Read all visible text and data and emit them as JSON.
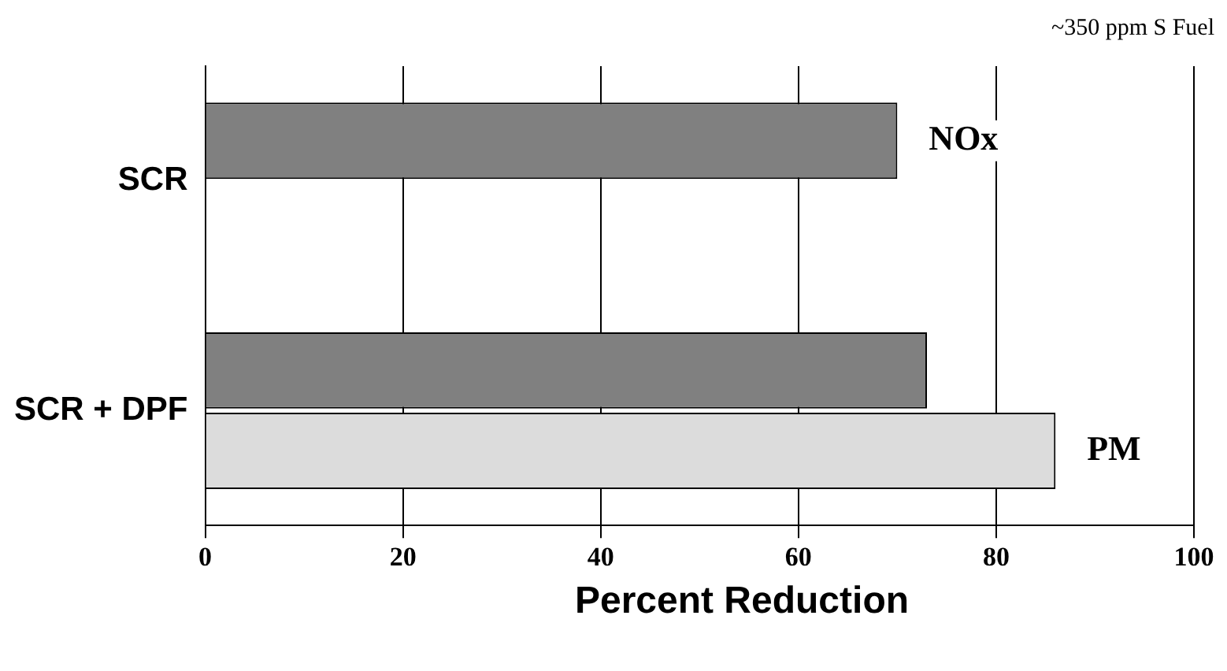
{
  "chart_data": {
    "type": "bar",
    "orientation": "horizontal",
    "categories": [
      "SCR",
      "SCR + DPF"
    ],
    "series": [
      {
        "name": "NOx",
        "color": "#808080",
        "values": [
          70,
          73
        ]
      },
      {
        "name": "PM",
        "color": "#dcdcdc",
        "values": [
          null,
          86
        ]
      }
    ],
    "xlabel": "Percent Reduction",
    "xlim": [
      0,
      100
    ],
    "xticks": [
      0,
      20,
      40,
      60,
      80,
      100
    ],
    "grid": "x",
    "legend": false,
    "annotations": [
      "~350 ppm S Fuel"
    ]
  }
}
